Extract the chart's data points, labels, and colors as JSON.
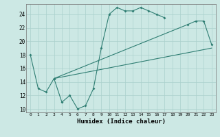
{
  "xlabel": "Humidex (Indice chaleur)",
  "background_color": "#cce8e4",
  "grid_color": "#aad0cc",
  "line_color": "#2e7d72",
  "xlim": [
    -0.5,
    23.5
  ],
  "ylim": [
    9.5,
    25.5
  ],
  "xticks": [
    0,
    1,
    2,
    3,
    4,
    5,
    6,
    7,
    8,
    9,
    10,
    11,
    12,
    13,
    14,
    15,
    16,
    17,
    18,
    19,
    20,
    21,
    22,
    23
  ],
  "yticks": [
    10,
    12,
    14,
    16,
    18,
    20,
    22,
    24
  ],
  "s1x": [
    0,
    1,
    2,
    3,
    4,
    5,
    6,
    7,
    8,
    9,
    10,
    11,
    12,
    13,
    14,
    15,
    16,
    17
  ],
  "s1y": [
    18,
    13,
    12.5,
    14.5,
    11,
    12,
    10,
    10.5,
    13,
    19,
    24,
    25,
    24.5,
    24.5,
    25,
    24.5,
    24,
    23.5
  ],
  "s2x": [
    3,
    20,
    21,
    22,
    23
  ],
  "s2y": [
    14.5,
    22.5,
    23,
    23,
    19.5
  ],
  "s3x": [
    3,
    23
  ],
  "s3y": [
    14.5,
    19
  ]
}
